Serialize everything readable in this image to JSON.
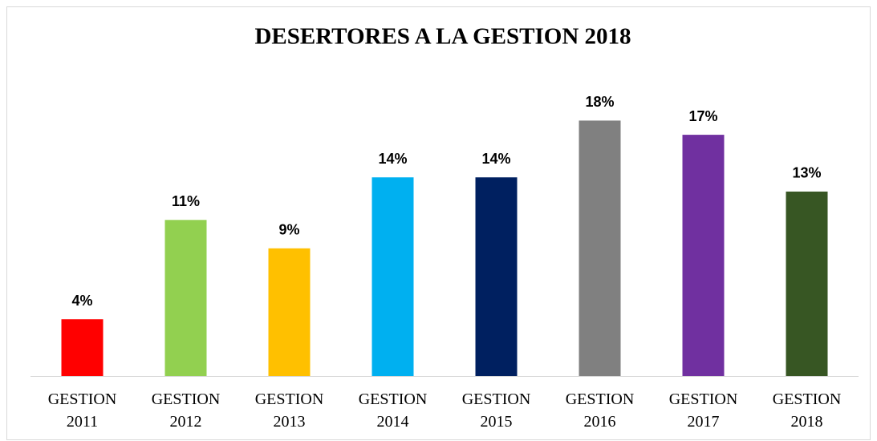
{
  "chart_data": {
    "type": "bar",
    "title": "DESERTORES A LA GESTION 2018",
    "categories": [
      "GESTION 2011",
      "GESTION 2012",
      "GESTION 2013",
      "GESTION 2014",
      "GESTION 2015",
      "GESTION 2016",
      "GESTION 2017",
      "GESTION 2018"
    ],
    "values": [
      4,
      11,
      9,
      14,
      14,
      18,
      17,
      13
    ],
    "value_labels": [
      "4%",
      "11%",
      "9%",
      "14%",
      "14%",
      "18%",
      "17%",
      "13%"
    ],
    "colors": [
      "#ff0000",
      "#92d050",
      "#ffc000",
      "#00b0f0",
      "#002060",
      "#808080",
      "#7030a0",
      "#375623"
    ],
    "ylim": [
      0,
      20
    ]
  }
}
